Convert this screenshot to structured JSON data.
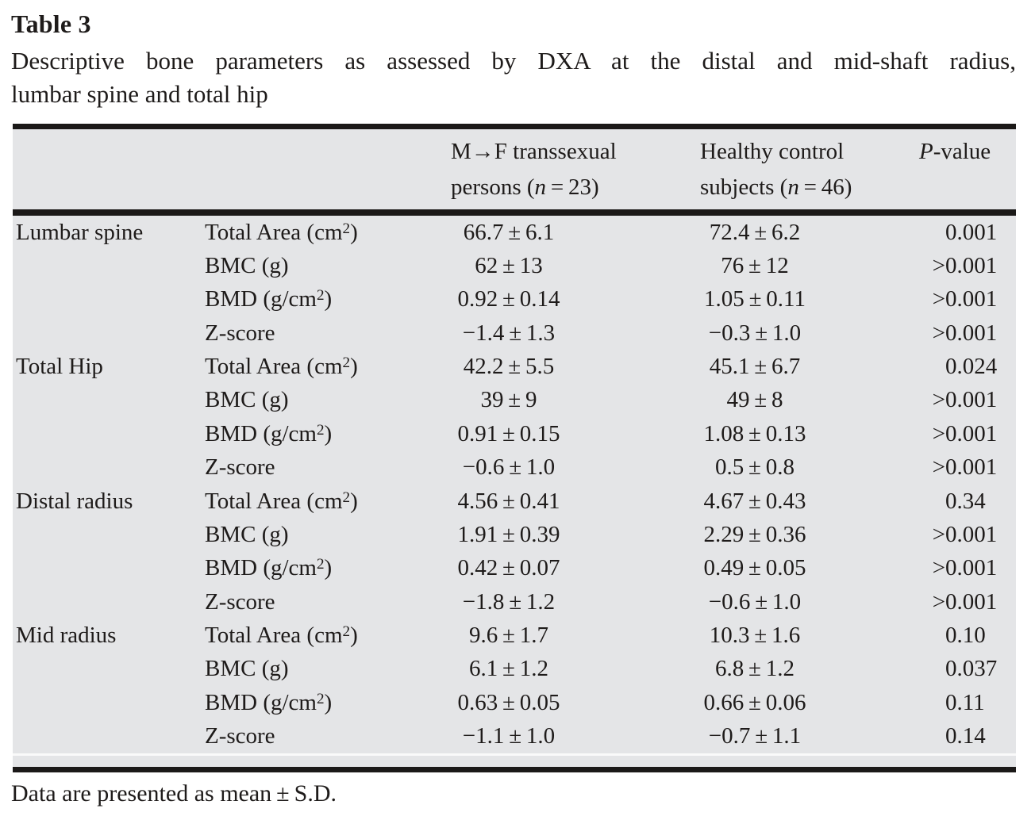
{
  "page": {
    "title": "Table 3",
    "caption_line1": "Descriptive bone parameters as assessed by DXA at the distal and mid-shaft radius,",
    "caption_line2": "lumbar spine and total hip",
    "footnote": "Data are presented as mean ± S.D.",
    "background_color": "#ffffff",
    "table_fill_color": "#e4e5e7",
    "rule_color": "#1b1918"
  },
  "table": {
    "header": {
      "col_region": "",
      "col_parameter": "",
      "col_transsexual": {
        "line1": "M→F transsexual",
        "line2_pre": "persons (",
        "line2_n": "n",
        "line2_post": " = 23)"
      },
      "col_control": {
        "line1": "Healthy control",
        "line2_pre": "subjects (",
        "line2_n": "n",
        "line2_post": " = 46)"
      },
      "col_p": {
        "italic": "P",
        "rest": "-value"
      }
    },
    "rows": [
      {
        "region": "Lumbar spine",
        "param": {
          "pre": "Total Area (cm",
          "sup": "2",
          "post": ")"
        },
        "transsexual": "66.7 ± 6.1",
        "control": "72.4 ± 6.2",
        "p": {
          "lt": "",
          "val": "0.001"
        }
      },
      {
        "region": "",
        "param": {
          "pre": "BMC (g)",
          "sup": "",
          "post": ""
        },
        "transsexual": "62 ± 13",
        "control": "76 ± 12",
        "p": {
          "lt": "<",
          "val": "0.001"
        }
      },
      {
        "region": "",
        "param": {
          "pre": "BMD (g/cm",
          "sup": "2",
          "post": ")"
        },
        "transsexual": "0.92 ± 0.14",
        "control": "1.05 ± 0.11",
        "p": {
          "lt": "<",
          "val": "0.001"
        }
      },
      {
        "region": "",
        "param": {
          "pre": "Z-score",
          "sup": "",
          "post": ""
        },
        "transsexual": "−1.4 ± 1.3",
        "control": "−0.3 ± 1.0",
        "p": {
          "lt": "<",
          "val": "0.001"
        }
      },
      {
        "region": "Total Hip",
        "param": {
          "pre": "Total Area (cm",
          "sup": "2",
          "post": ")"
        },
        "transsexual": "42.2 ± 5.5",
        "control": "45.1 ± 6.7",
        "p": {
          "lt": "",
          "val": "0.024"
        }
      },
      {
        "region": "",
        "param": {
          "pre": "BMC (g)",
          "sup": "",
          "post": ""
        },
        "transsexual": "39 ± 9",
        "control": "49 ± 8",
        "p": {
          "lt": "<",
          "val": "0.001"
        }
      },
      {
        "region": "",
        "param": {
          "pre": "BMD (g/cm",
          "sup": "2",
          "post": ")"
        },
        "transsexual": "0.91 ± 0.15",
        "control": "1.08 ± 0.13",
        "p": {
          "lt": "<",
          "val": "0.001"
        }
      },
      {
        "region": "",
        "param": {
          "pre": "Z-score",
          "sup": "",
          "post": ""
        },
        "transsexual": "−0.6 ± 1.0",
        "control": "0.5 ± 0.8",
        "p": {
          "lt": "<",
          "val": "0.001"
        }
      },
      {
        "region": "Distal radius",
        "param": {
          "pre": "Total Area (cm",
          "sup": "2",
          "post": ")"
        },
        "transsexual": "4.56 ± 0.41",
        "control": "4.67 ± 0.43",
        "p": {
          "lt": "",
          "val": "0.34"
        }
      },
      {
        "region": "",
        "param": {
          "pre": "BMC (g)",
          "sup": "",
          "post": ""
        },
        "transsexual": "1.91 ± 0.39",
        "control": "2.29 ± 0.36",
        "p": {
          "lt": "<",
          "val": "0.001"
        }
      },
      {
        "region": "",
        "param": {
          "pre": "BMD (g/cm",
          "sup": "2",
          "post": ")"
        },
        "transsexual": "0.42 ± 0.07",
        "control": "0.49 ± 0.05",
        "p": {
          "lt": "<",
          "val": "0.001"
        }
      },
      {
        "region": "",
        "param": {
          "pre": "Z-score",
          "sup": "",
          "post": ""
        },
        "transsexual": "−1.8 ± 1.2",
        "control": "−0.6 ± 1.0",
        "p": {
          "lt": "<",
          "val": "0.001"
        }
      },
      {
        "region": "Mid radius",
        "param": {
          "pre": "Total Area (cm",
          "sup": "2",
          "post": ")"
        },
        "transsexual": "9.6 ± 1.7",
        "control": "10.3 ± 1.6",
        "p": {
          "lt": "",
          "val": "0.10"
        }
      },
      {
        "region": "",
        "param": {
          "pre": "BMC (g)",
          "sup": "",
          "post": ""
        },
        "transsexual": "6.1 ± 1.2",
        "control": "6.8 ± 1.2",
        "p": {
          "lt": "",
          "val": "0.037"
        }
      },
      {
        "region": "",
        "param": {
          "pre": "BMD (g/cm",
          "sup": "2",
          "post": ")"
        },
        "transsexual": "0.63 ± 0.05",
        "control": "0.66 ± 0.06",
        "p": {
          "lt": "",
          "val": "0.11"
        }
      },
      {
        "region": "",
        "param": {
          "pre": "Z-score",
          "sup": "",
          "post": ""
        },
        "transsexual": "−1.1 ± 1.0",
        "control": "−0.7 ± 1.1",
        "p": {
          "lt": "",
          "val": "0.14"
        }
      }
    ]
  }
}
